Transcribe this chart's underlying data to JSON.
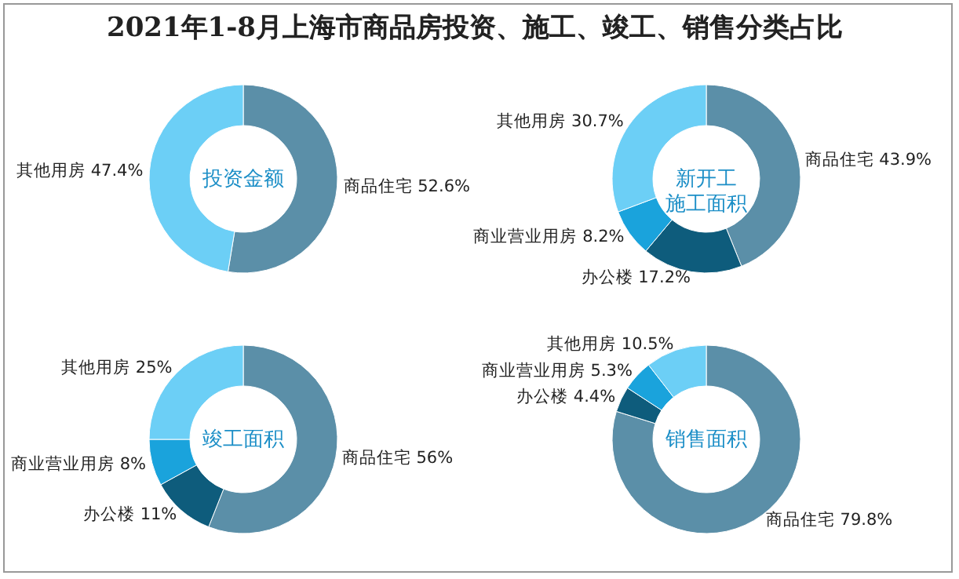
{
  "chart_data": [
    {
      "type": "other",
      "title": "2021年1-8月上海市商品房投资、施工、竣工、销售分类占比"
    },
    {
      "type": "donut",
      "title": "投资金额",
      "categories": [
        "商品住宅",
        "其他用房"
      ],
      "values": [
        52.6,
        47.4
      ],
      "value_labels": [
        "52.6%",
        "47.4%"
      ],
      "colors": [
        "#5b8fa8",
        "#6ccff6"
      ]
    },
    {
      "type": "donut",
      "title": "新开工施工面积",
      "categories": [
        "商品住宅",
        "办公楼",
        "商业营业用房",
        "其他用房"
      ],
      "values": [
        43.9,
        17.2,
        8.2,
        30.7
      ],
      "value_labels": [
        "43.9%",
        "17.2%",
        "8.2%",
        "30.7%"
      ],
      "colors": [
        "#5b8fa8",
        "#0e5c7c",
        "#1aa3dc",
        "#6ccff6"
      ]
    },
    {
      "type": "donut",
      "title": "竣工面积",
      "categories": [
        "商品住宅",
        "办公楼",
        "商业营业用房",
        "其他用房"
      ],
      "values": [
        56,
        11,
        8,
        25
      ],
      "value_labels": [
        "56%",
        "11%",
        "8%",
        "25%"
      ],
      "colors": [
        "#5b8fa8",
        "#0e5c7c",
        "#1aa3dc",
        "#6ccff6"
      ]
    },
    {
      "type": "donut",
      "title": "销售面积",
      "categories": [
        "商品住宅",
        "办公楼",
        "商业营业用房",
        "其他用房"
      ],
      "values": [
        79.8,
        4.4,
        5.3,
        10.5
      ],
      "value_labels": [
        "79.8%",
        "4.4%",
        "5.3%",
        "10.5%"
      ],
      "colors": [
        "#5b8fa8",
        "#0e5c7c",
        "#1aa3dc",
        "#6ccff6"
      ]
    }
  ]
}
